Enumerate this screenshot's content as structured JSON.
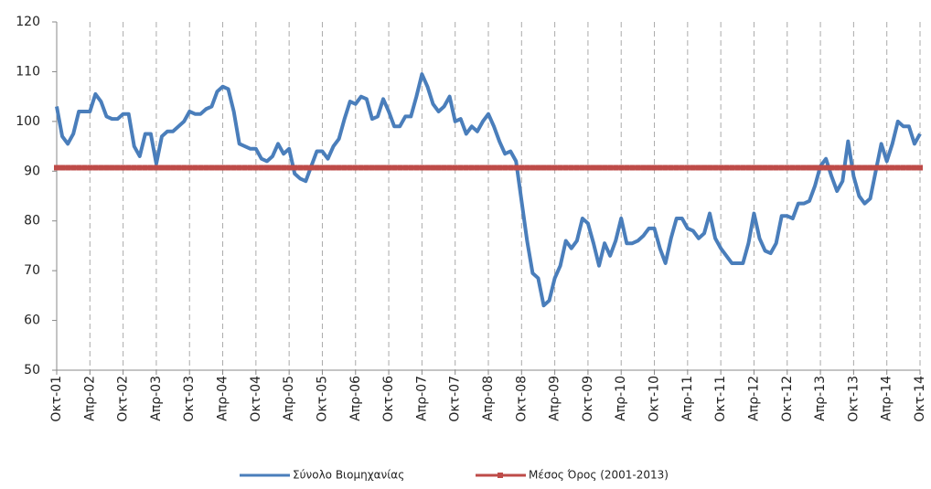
{
  "chart_data": {
    "type": "line",
    "categories": [
      "Οκτ-01",
      null,
      null,
      null,
      null,
      null,
      "Απρ-02",
      null,
      null,
      null,
      null,
      null,
      "Οκτ-02",
      null,
      null,
      null,
      null,
      null,
      "Απρ-03",
      null,
      null,
      null,
      null,
      null,
      "Οκτ-03",
      null,
      null,
      null,
      null,
      null,
      "Απρ-04",
      null,
      null,
      null,
      null,
      null,
      "Οκτ-04",
      null,
      null,
      null,
      null,
      null,
      "Απρ-05",
      null,
      null,
      null,
      null,
      null,
      "Οκτ-05",
      null,
      null,
      null,
      null,
      null,
      "Απρ-06",
      null,
      null,
      null,
      null,
      null,
      "Οκτ-06",
      null,
      null,
      null,
      null,
      null,
      "Απρ-07",
      null,
      null,
      null,
      null,
      null,
      "Οκτ-07",
      null,
      null,
      null,
      null,
      null,
      "Απρ-08",
      null,
      null,
      null,
      null,
      null,
      "Οκτ-08",
      null,
      null,
      null,
      null,
      null,
      "Απρ-09",
      null,
      null,
      null,
      null,
      null,
      "Οκτ-09",
      null,
      null,
      null,
      null,
      null,
      "Απρ-10",
      null,
      null,
      null,
      null,
      null,
      "Οκτ-10",
      null,
      null,
      null,
      null,
      null,
      "Απρ-11",
      null,
      null,
      null,
      null,
      null,
      "Οκτ-11",
      null,
      null,
      null,
      null,
      null,
      "Απρ-12",
      null,
      null,
      null,
      null,
      null,
      "Οκτ-12",
      null,
      null,
      null,
      null,
      null,
      "Απρ-13",
      null,
      null,
      null,
      null,
      null,
      "Οκτ-13",
      null,
      null,
      null,
      null,
      null,
      "Απρ-14",
      null,
      null,
      null,
      null,
      null,
      "Οκτ-14"
    ],
    "series": [
      {
        "name": "Σύνολο Βιομηχανίας",
        "color": "#4a7ebb",
        "marker": "none",
        "values": [
          103,
          97,
          95.5,
          97.5,
          102,
          102,
          102,
          105.5,
          104,
          101,
          100.5,
          100.5,
          101.5,
          101.5,
          95,
          93,
          97.5,
          97.5,
          91.5,
          97,
          98,
          98,
          99,
          100,
          102,
          101.5,
          101.5,
          102.5,
          103,
          106,
          107,
          106.5,
          102,
          95.5,
          95,
          94.5,
          94.5,
          92.5,
          92,
          93,
          95.5,
          93.5,
          94.5,
          89.5,
          88.5,
          88,
          91,
          94,
          94,
          92.5,
          95,
          96.5,
          100.5,
          104,
          103.5,
          105,
          104.5,
          100.5,
          101,
          104.5,
          102,
          99,
          99,
          101,
          101,
          105,
          109.5,
          107,
          103.5,
          102,
          103,
          105,
          100,
          100.5,
          97.5,
          99,
          98,
          100,
          101.5,
          99,
          96,
          93.5,
          94,
          92,
          84,
          76,
          69.5,
          68.5,
          63,
          64,
          68.5,
          71,
          76,
          74.5,
          76,
          80.5,
          79.5,
          75.5,
          71,
          75.5,
          73,
          76,
          80.5,
          75.5,
          75.5,
          76,
          77,
          78.5,
          78.5,
          74.5,
          71.5,
          76.5,
          80.5,
          80.5,
          78.5,
          78,
          76.5,
          77.5,
          81.5,
          76.5,
          74.5,
          73,
          71.5,
          71.5,
          71.5,
          75.5,
          81.5,
          76.5,
          74,
          73.5,
          75.5,
          81,
          81,
          80.5,
          83.5,
          83.5,
          84,
          87,
          91,
          92.5,
          89,
          86,
          88,
          96,
          89,
          85,
          83.5,
          84.5,
          90,
          95.5,
          92,
          95.5,
          100,
          99,
          99,
          95.5,
          97.5
        ]
      },
      {
        "name": "Μέσος Όρος (2001-2013)",
        "color": "#be4b48",
        "marker": "square",
        "values": [
          90.7,
          90.7,
          90.7,
          90.7,
          90.7,
          90.7,
          90.7,
          90.7,
          90.7,
          90.7,
          90.7,
          90.7,
          90.7,
          90.7,
          90.7,
          90.7,
          90.7,
          90.7,
          90.7,
          90.7,
          90.7,
          90.7,
          90.7,
          90.7,
          90.7,
          90.7,
          90.7,
          90.7,
          90.7,
          90.7,
          90.7,
          90.7,
          90.7,
          90.7,
          90.7,
          90.7,
          90.7,
          90.7,
          90.7,
          90.7,
          90.7,
          90.7,
          90.7,
          90.7,
          90.7,
          90.7,
          90.7,
          90.7,
          90.7,
          90.7,
          90.7,
          90.7,
          90.7,
          90.7,
          90.7,
          90.7,
          90.7,
          90.7,
          90.7,
          90.7,
          90.7,
          90.7,
          90.7,
          90.7,
          90.7,
          90.7,
          90.7,
          90.7,
          90.7,
          90.7,
          90.7,
          90.7,
          90.7,
          90.7,
          90.7,
          90.7,
          90.7,
          90.7,
          90.7,
          90.7,
          90.7,
          90.7,
          90.7,
          90.7,
          90.7,
          90.7,
          90.7,
          90.7,
          90.7,
          90.7,
          90.7,
          90.7,
          90.7,
          90.7,
          90.7,
          90.7,
          90.7,
          90.7,
          90.7,
          90.7,
          90.7,
          90.7,
          90.7,
          90.7,
          90.7,
          90.7,
          90.7,
          90.7,
          90.7,
          90.7,
          90.7,
          90.7,
          90.7,
          90.7,
          90.7,
          90.7,
          90.7,
          90.7,
          90.7,
          90.7,
          90.7,
          90.7,
          90.7,
          90.7,
          90.7,
          90.7,
          90.7,
          90.7,
          90.7,
          90.7,
          90.7,
          90.7,
          90.7,
          90.7,
          90.7,
          90.7,
          90.7,
          90.7,
          90.7,
          90.7,
          90.7,
          90.7,
          90.7,
          90.7,
          90.7,
          90.7,
          90.7,
          90.7,
          90.7,
          90.7,
          90.7,
          90.7,
          90.7,
          90.7,
          90.7,
          90.7,
          90.7
        ]
      }
    ],
    "ylim": [
      50,
      120
    ],
    "yticks": [
      50,
      60,
      70,
      80,
      90,
      100,
      110,
      120
    ],
    "grid": true,
    "legend": "bottom"
  }
}
